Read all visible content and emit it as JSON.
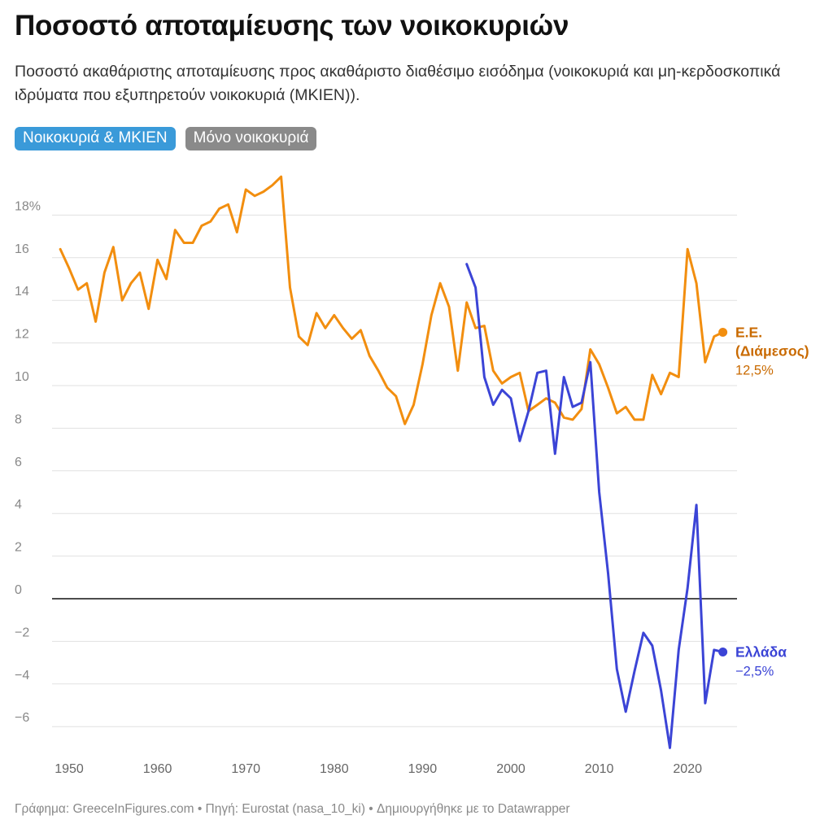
{
  "title": "Ποσοστό αποταμίευσης των νοικοκυριών",
  "subtitle": "Ποσοστό ακαθάριστης αποταμίευσης προς ακαθάριστο διαθέσιμο εισόδημα (νοικοκυριά και μη-κερδοσκοπικά ιδρύματα που εξυπηρετούν νοικοκυριά (MKIEN)).",
  "toggles": {
    "households_npish": "Νοικοκυριά & MKIEN",
    "households_only": "Μόνο νοικοκυριά"
  },
  "footer": "Γράφημα: GreeceInFigures.com • Πηγή: Eurostat (nasa_10_ki) • Δημιουργήθηκε με το Datawrapper",
  "chart_data": {
    "type": "line",
    "xlim": [
      1948,
      2026
    ],
    "ylim": [
      -7.2,
      19.5
    ],
    "grid": true,
    "x_ticks": [
      1950,
      1960,
      1970,
      1980,
      1990,
      2000,
      2010,
      2020
    ],
    "x_tick_labels": [
      "1950",
      "1960",
      "1970",
      "1980",
      "1990",
      "2000",
      "2010",
      "2020"
    ],
    "y_ticks": [
      18,
      16,
      14,
      12,
      10,
      8,
      6,
      4,
      2,
      0,
      -2,
      -4,
      -6
    ],
    "y_tick_labels": [
      "18%",
      "16",
      "14",
      "12",
      "10",
      "8",
      "6",
      "4",
      "2",
      "0",
      "−2",
      "−4",
      "−6"
    ],
    "series": [
      {
        "name": "Ε.Ε. (Διάμεσος)",
        "label_lines": [
          "Ε.Ε.",
          "(Διάμεσος)"
        ],
        "value_label": "12,5%",
        "color": "#f28e0f",
        "label_color": "#c96a00",
        "x": [
          1949,
          1950,
          1951,
          1952,
          1953,
          1954,
          1955,
          1956,
          1957,
          1958,
          1959,
          1960,
          1961,
          1962,
          1963,
          1964,
          1965,
          1966,
          1967,
          1968,
          1969,
          1970,
          1971,
          1972,
          1973,
          1974,
          1975,
          1976,
          1977,
          1978,
          1979,
          1980,
          1981,
          1982,
          1983,
          1984,
          1985,
          1986,
          1987,
          1988,
          1989,
          1990,
          1991,
          1992,
          1993,
          1994,
          1995,
          1996,
          1997,
          1998,
          1999,
          2000,
          2001,
          2002,
          2003,
          2004,
          2005,
          2006,
          2007,
          2008,
          2009,
          2010,
          2011,
          2012,
          2013,
          2014,
          2015,
          2016,
          2017,
          2018,
          2019,
          2020,
          2021,
          2022,
          2023,
          2024
        ],
        "y": [
          16.4,
          15.5,
          14.5,
          14.8,
          13.0,
          15.3,
          16.5,
          14.0,
          14.8,
          15.3,
          13.6,
          15.9,
          15.0,
          17.3,
          16.7,
          16.7,
          17.5,
          17.7,
          18.3,
          18.5,
          17.2,
          19.2,
          18.9,
          19.1,
          19.4,
          19.8,
          14.6,
          12.3,
          11.9,
          13.4,
          12.7,
          13.3,
          12.7,
          12.2,
          12.6,
          11.4,
          10.7,
          9.9,
          9.5,
          8.2,
          9.1,
          11.0,
          13.3,
          14.8,
          13.7,
          10.7,
          13.9,
          12.7,
          12.8,
          10.7,
          10.1,
          10.4,
          10.6,
          8.8,
          9.1,
          9.4,
          9.2,
          8.5,
          8.4,
          8.9,
          11.7,
          11.0,
          9.9,
          8.7,
          9.0,
          8.4,
          8.4,
          10.5,
          9.6,
          10.6,
          10.4,
          16.4,
          14.8,
          11.1,
          12.3,
          12.5
        ]
      },
      {
        "name": "Ελλάδα",
        "label_lines": [
          "Ελλάδα"
        ],
        "value_label": "−2,5%",
        "color": "#3b44d6",
        "label_color": "#3b44d6",
        "x": [
          1995,
          1996,
          1997,
          1998,
          1999,
          2000,
          2001,
          2002,
          2003,
          2004,
          2005,
          2006,
          2007,
          2008,
          2009,
          2010,
          2011,
          2012,
          2013,
          2014,
          2015,
          2016,
          2017,
          2018,
          2019,
          2020,
          2021,
          2022,
          2023,
          2024
        ],
        "y": [
          15.7,
          14.6,
          10.4,
          9.1,
          9.8,
          9.4,
          7.4,
          8.8,
          10.6,
          10.7,
          6.8,
          10.4,
          9.0,
          9.2,
          11.1,
          5.0,
          1.2,
          -3.3,
          -5.3,
          -3.4,
          -1.6,
          -2.2,
          -4.3,
          -7.0,
          -2.4,
          0.5,
          4.4,
          -4.9,
          -2.4,
          -2.5
        ]
      }
    ]
  }
}
